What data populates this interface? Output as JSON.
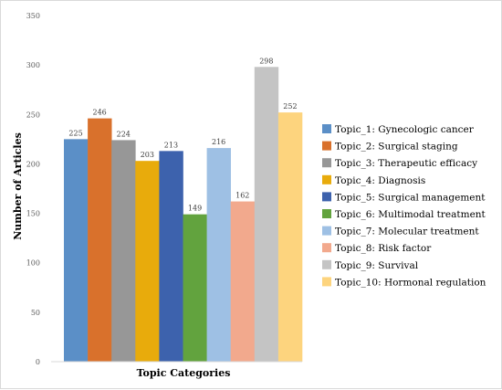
{
  "chart_data": {
    "type": "bar",
    "title": "",
    "xlabel": "Topic Categories",
    "ylabel": "Number of Articles",
    "ylim": [
      0,
      350
    ],
    "yticks": [
      0,
      50,
      100,
      150,
      200,
      250,
      300,
      350
    ],
    "grid": false,
    "legend_position": "right",
    "series": [
      {
        "name": "Topic_1: Gynecologic cancer",
        "value": 225,
        "color": "#5b8fc7"
      },
      {
        "name": "Topic_2: Surgical staging",
        "value": 246,
        "color": "#d9712c"
      },
      {
        "name": "Topic_3: Therapeutic efficacy",
        "value": 224,
        "color": "#979797"
      },
      {
        "name": "Topic_4: Diagnosis",
        "value": 203,
        "color": "#e8ab0c"
      },
      {
        "name": "Topic_5: Surgical management",
        "value": 213,
        "color": "#3d62ad"
      },
      {
        "name": "Topic_6: Multimodal treatment",
        "value": 149,
        "color": "#62a33e"
      },
      {
        "name": "Topic_7: Molecular treatment",
        "value": 216,
        "color": "#9ec0e4"
      },
      {
        "name": "Topic_8: Risk factor",
        "value": 162,
        "color": "#f2a98d"
      },
      {
        "name": "Topic_9: Survival",
        "value": 298,
        "color": "#c4c4c4"
      },
      {
        "name": "Topic_10: Hormonal regulation",
        "value": 252,
        "color": "#fdd47e"
      }
    ]
  }
}
